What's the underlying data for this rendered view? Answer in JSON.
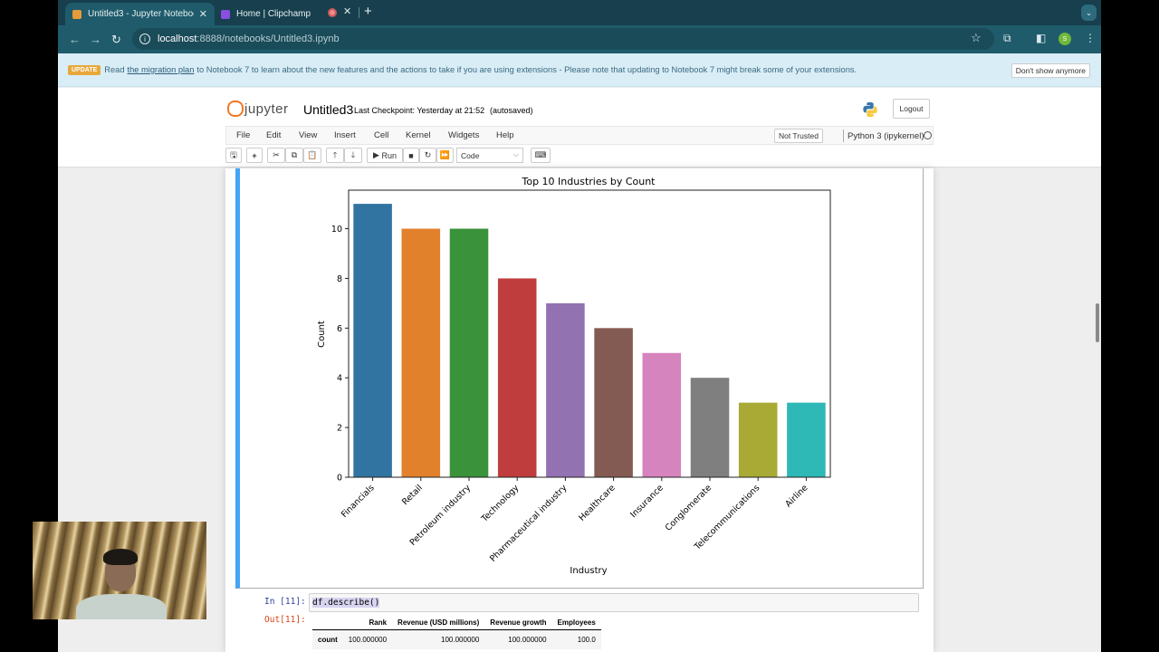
{
  "browser": {
    "tabs": [
      {
        "label": "Untitled3 - Jupyter Notebook",
        "active": true,
        "favicon_color": "#e59b3a"
      },
      {
        "label": "Home | Clipchamp",
        "active": false,
        "favicon_color": "#8a4fe0"
      }
    ],
    "new_tab": "+",
    "url_host": "localhost",
    "url_path": ":8888/notebooks/Untitled3.ipynb",
    "profile_initial": "S"
  },
  "banner": {
    "badge": "UPDATE",
    "text_before": "Read",
    "link": "the migration plan",
    "text_after": "to Notebook 7 to learn about the new features and the actions to take if you are using extensions - Please note that updating to Notebook 7 might break some of your extensions.",
    "dismiss_label": "Don't show anymore"
  },
  "jupyter": {
    "logo_text": "jupyter",
    "notebook_name": "Untitled3",
    "checkpoint": "Last Checkpoint: Yesterday at 21:52",
    "autosave": "(autosaved)",
    "logout_label": "Logout",
    "menu": [
      "File",
      "Edit",
      "View",
      "Insert",
      "Cell",
      "Kernel",
      "Widgets",
      "Help"
    ],
    "trust_label": "Not Trusted",
    "kernel_name": "Python 3 (ipykernel)",
    "run_label": "Run",
    "cell_type": "Code"
  },
  "cells": {
    "in_prompt": "In [11]:",
    "code": "df.describe()",
    "out_prompt": "Out[11]:",
    "table": {
      "columns": [
        "",
        "Rank",
        "Revenue (USD millions)",
        "Revenue growth",
        "Employees"
      ],
      "rows": [
        [
          "count",
          "100.000000",
          "100.000000",
          "100.000000",
          "100.0"
        ]
      ]
    }
  },
  "chart_data": {
    "type": "bar",
    "title": "Top 10 Industries by Count",
    "xlabel": "Industry",
    "ylabel": "Count",
    "categories": [
      "Financials",
      "Retail",
      "Petroleum industry",
      "Technology",
      "Pharmaceutical industry",
      "Healthcare",
      "Insurance",
      "Conglomerate",
      "Telecommunications",
      "Airline"
    ],
    "values": [
      11,
      10,
      10,
      8,
      7,
      6,
      5,
      4,
      3,
      3
    ],
    "colors": [
      "#3274a1",
      "#e1812c",
      "#3a923a",
      "#c03d3e",
      "#9372b2",
      "#845b53",
      "#d684bd",
      "#7f7f7f",
      "#a9aa35",
      "#2eb8b6"
    ],
    "yticks": [
      0,
      2,
      4,
      6,
      8,
      10
    ],
    "ylim": [
      0,
      11.55
    ],
    "grid": false,
    "legend": null
  }
}
